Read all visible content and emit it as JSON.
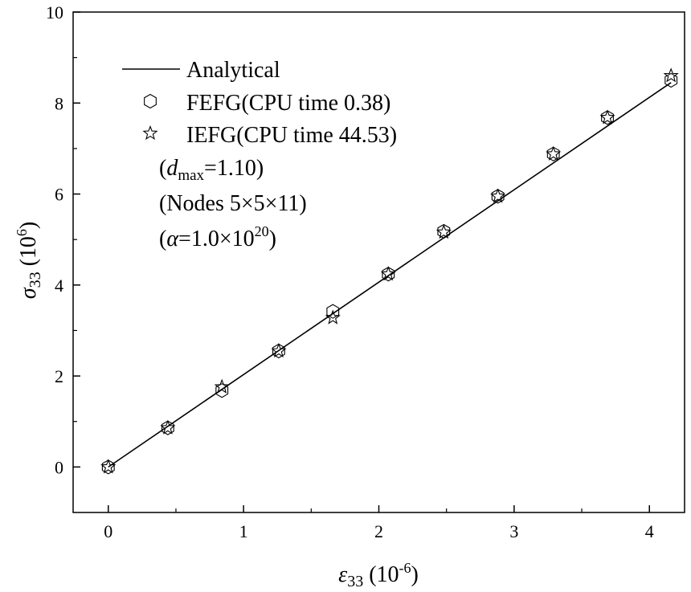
{
  "chart_data": {
    "type": "line",
    "xlabel_symbol": "ε",
    "xlabel_sub": "33",
    "xlabel_unit_pre": " (10",
    "xlabel_unit_exp": "-6",
    "xlabel_unit_post": ")",
    "ylabel_symbol": "σ",
    "ylabel_sub": "33",
    "ylabel_unit_pre": " (10",
    "ylabel_unit_exp": "6",
    "ylabel_unit_post": ")",
    "xlim": [
      -0.26,
      4.26
    ],
    "ylim": [
      -1,
      10
    ],
    "xticks": [
      0,
      1,
      2,
      3,
      4
    ],
    "yticks": [
      0,
      2,
      4,
      6,
      8,
      10
    ],
    "xtick_labels": [
      "0",
      "1",
      "2",
      "3",
      "4"
    ],
    "ytick_labels": [
      "0",
      "2",
      "4",
      "6",
      "8",
      "10"
    ],
    "series": [
      {
        "name": "Analytical",
        "marker": "line",
        "x": [
          0,
          4.16
        ],
        "y": [
          0,
          8.45
        ]
      },
      {
        "name": "FEFG(CPU time 0.38)",
        "marker": "hexagon",
        "x": [
          0.0,
          0.44,
          0.84,
          1.26,
          1.66,
          2.07,
          2.48,
          2.88,
          3.29,
          3.69,
          4.16
        ],
        "y": [
          0.0,
          0.86,
          1.68,
          2.55,
          3.42,
          4.24,
          5.18,
          5.95,
          6.88,
          7.68,
          8.5
        ]
      },
      {
        "name": "IEFG(CPU time 44.53)",
        "marker": "star",
        "x": [
          0.0,
          0.44,
          0.84,
          1.26,
          1.66,
          2.07,
          2.48,
          2.88,
          3.29,
          3.69,
          4.16
        ],
        "y": [
          0.0,
          0.86,
          1.76,
          2.55,
          3.28,
          4.24,
          5.16,
          5.95,
          6.88,
          7.68,
          8.6
        ]
      }
    ],
    "annotations": {
      "dmax_open": "(",
      "dmax_symbol": "d",
      "dmax_sub": "max",
      "dmax_value": "=1.10)",
      "nodes": "(Nodes 5×5×11)",
      "alpha_open": "(",
      "alpha_symbol": "α",
      "alpha_value": "=1.0×10",
      "alpha_exp": "20",
      "alpha_close": ")"
    },
    "legend_position": "top-left",
    "grid": false
  }
}
